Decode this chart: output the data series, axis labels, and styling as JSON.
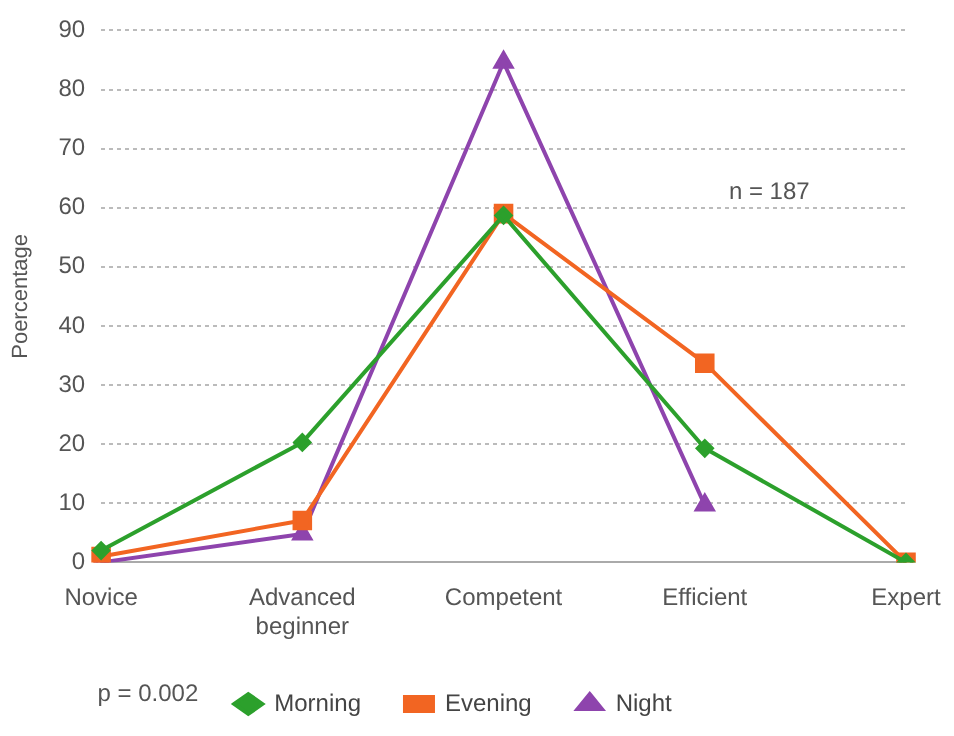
{
  "chart_data": {
    "type": "line",
    "ylabel": "Poercentage",
    "categories": [
      "Novice",
      "Advanced beginner",
      "Competent",
      "Efficient",
      "Expert"
    ],
    "series": [
      {
        "name": "Morning",
        "color": "#2ca02c",
        "marker": "diamond",
        "values": [
          2,
          20.3,
          58.7,
          19.3,
          0
        ]
      },
      {
        "name": "Evening",
        "color": "#f26522",
        "marker": "square",
        "values": [
          1,
          7.1,
          59,
          33.7,
          0
        ]
      },
      {
        "name": "Night",
        "color": "#8e44ad",
        "marker": "triangle",
        "values": [
          0,
          4.8,
          84.6,
          9.7,
          null
        ]
      }
    ],
    "ylim": [
      0,
      90
    ],
    "yticks": [
      0,
      10,
      20,
      30,
      40,
      50,
      60,
      70,
      80,
      90
    ],
    "grid": "y",
    "line_style": "solid",
    "legend": "bottom",
    "annotations": [
      "n = 187",
      "p = 0.002"
    ]
  }
}
